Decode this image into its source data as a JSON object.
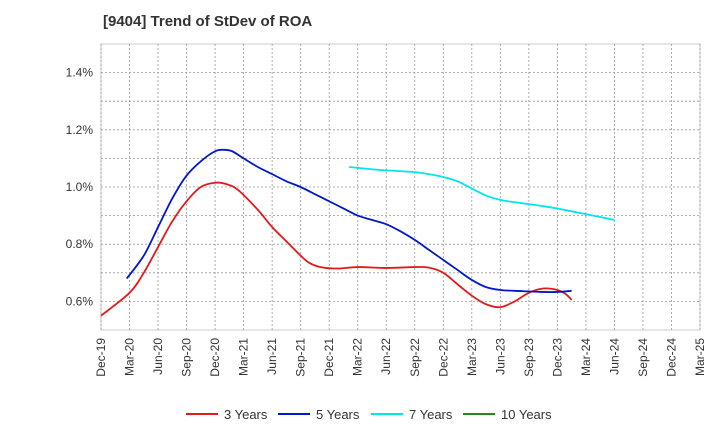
{
  "chart_data": {
    "type": "line",
    "title": "[9404]  Trend of StDev of ROA",
    "xlabel": "",
    "ylabel": "",
    "x_ticks": [
      "Dec-19",
      "Mar-20",
      "Jun-20",
      "Sep-20",
      "Dec-20",
      "Mar-21",
      "Jun-21",
      "Sep-21",
      "Dec-21",
      "Mar-22",
      "Jun-22",
      "Sep-22",
      "Dec-22",
      "Mar-23",
      "Jun-23",
      "Sep-23",
      "Dec-23",
      "Mar-24",
      "Jun-24",
      "Sep-24",
      "Dec-24",
      "Mar-25"
    ],
    "y_ticks": [
      "0.6%",
      "0.8%",
      "1.0%",
      "1.2%",
      "1.4%"
    ],
    "y_tick_values": [
      0.6,
      0.8,
      1.0,
      1.2,
      1.4
    ],
    "ylim": [
      0.5,
      1.5
    ],
    "grid": true,
    "legend_position": "bottom",
    "series": [
      {
        "name": "3 Years",
        "color": "#e31a1c",
        "points": [
          [
            0,
            0.55
          ],
          [
            1,
            0.63
          ],
          [
            1.5,
            0.7
          ],
          [
            2,
            0.79
          ],
          [
            2.5,
            0.88
          ],
          [
            3,
            0.95
          ],
          [
            3.5,
            1.0
          ],
          [
            4,
            1.015
          ],
          [
            4.4,
            1.01
          ],
          [
            4.8,
            0.99
          ],
          [
            5.5,
            0.92
          ],
          [
            6,
            0.86
          ],
          [
            6.5,
            0.81
          ],
          [
            7,
            0.76
          ],
          [
            7.3,
            0.735
          ],
          [
            7.7,
            0.72
          ],
          [
            8.3,
            0.715
          ],
          [
            9,
            0.72
          ],
          [
            10,
            0.717
          ],
          [
            11,
            0.72
          ],
          [
            11.5,
            0.718
          ],
          [
            12,
            0.7
          ],
          [
            12.5,
            0.66
          ],
          [
            13,
            0.62
          ],
          [
            13.5,
            0.59
          ],
          [
            14,
            0.58
          ],
          [
            14.5,
            0.6
          ],
          [
            15,
            0.63
          ],
          [
            15.5,
            0.645
          ],
          [
            16,
            0.64
          ],
          [
            16.3,
            0.625
          ],
          [
            16.5,
            0.605
          ]
        ]
      },
      {
        "name": "5 Years",
        "color": "#0018cc",
        "points": [
          [
            0.9,
            0.68
          ],
          [
            1.5,
            0.76
          ],
          [
            2,
            0.86
          ],
          [
            2.5,
            0.96
          ],
          [
            3,
            1.04
          ],
          [
            3.5,
            1.09
          ],
          [
            4,
            1.125
          ],
          [
            4.3,
            1.13
          ],
          [
            4.6,
            1.125
          ],
          [
            5,
            1.1
          ],
          [
            5.5,
            1.07
          ],
          [
            6,
            1.045
          ],
          [
            6.5,
            1.02
          ],
          [
            7,
            1.0
          ],
          [
            7.5,
            0.975
          ],
          [
            8,
            0.95
          ],
          [
            8.5,
            0.925
          ],
          [
            9,
            0.9
          ],
          [
            9.5,
            0.885
          ],
          [
            10,
            0.87
          ],
          [
            10.5,
            0.845
          ],
          [
            11,
            0.815
          ],
          [
            11.5,
            0.78
          ],
          [
            12,
            0.745
          ],
          [
            12.5,
            0.71
          ],
          [
            13,
            0.675
          ],
          [
            13.5,
            0.65
          ],
          [
            14,
            0.64
          ],
          [
            14.5,
            0.637
          ],
          [
            15,
            0.635
          ],
          [
            15.5,
            0.633
          ],
          [
            16,
            0.633
          ],
          [
            16.5,
            0.637
          ]
        ]
      },
      {
        "name": "7 Years",
        "color": "#00e5ee",
        "points": [
          [
            8.7,
            1.07
          ],
          [
            9.5,
            1.062
          ],
          [
            10,
            1.058
          ],
          [
            11,
            1.052
          ],
          [
            11.5,
            1.045
          ],
          [
            12,
            1.035
          ],
          [
            12.5,
            1.02
          ],
          [
            13,
            0.995
          ],
          [
            13.5,
            0.97
          ],
          [
            14,
            0.955
          ],
          [
            14.5,
            0.947
          ],
          [
            15,
            0.94
          ],
          [
            15.5,
            0.933
          ],
          [
            16,
            0.925
          ],
          [
            16.5,
            0.915
          ],
          [
            17,
            0.905
          ],
          [
            17.5,
            0.895
          ],
          [
            18,
            0.885
          ]
        ]
      },
      {
        "name": "10 Years",
        "color": "#1e8c1e",
        "points": []
      }
    ]
  }
}
